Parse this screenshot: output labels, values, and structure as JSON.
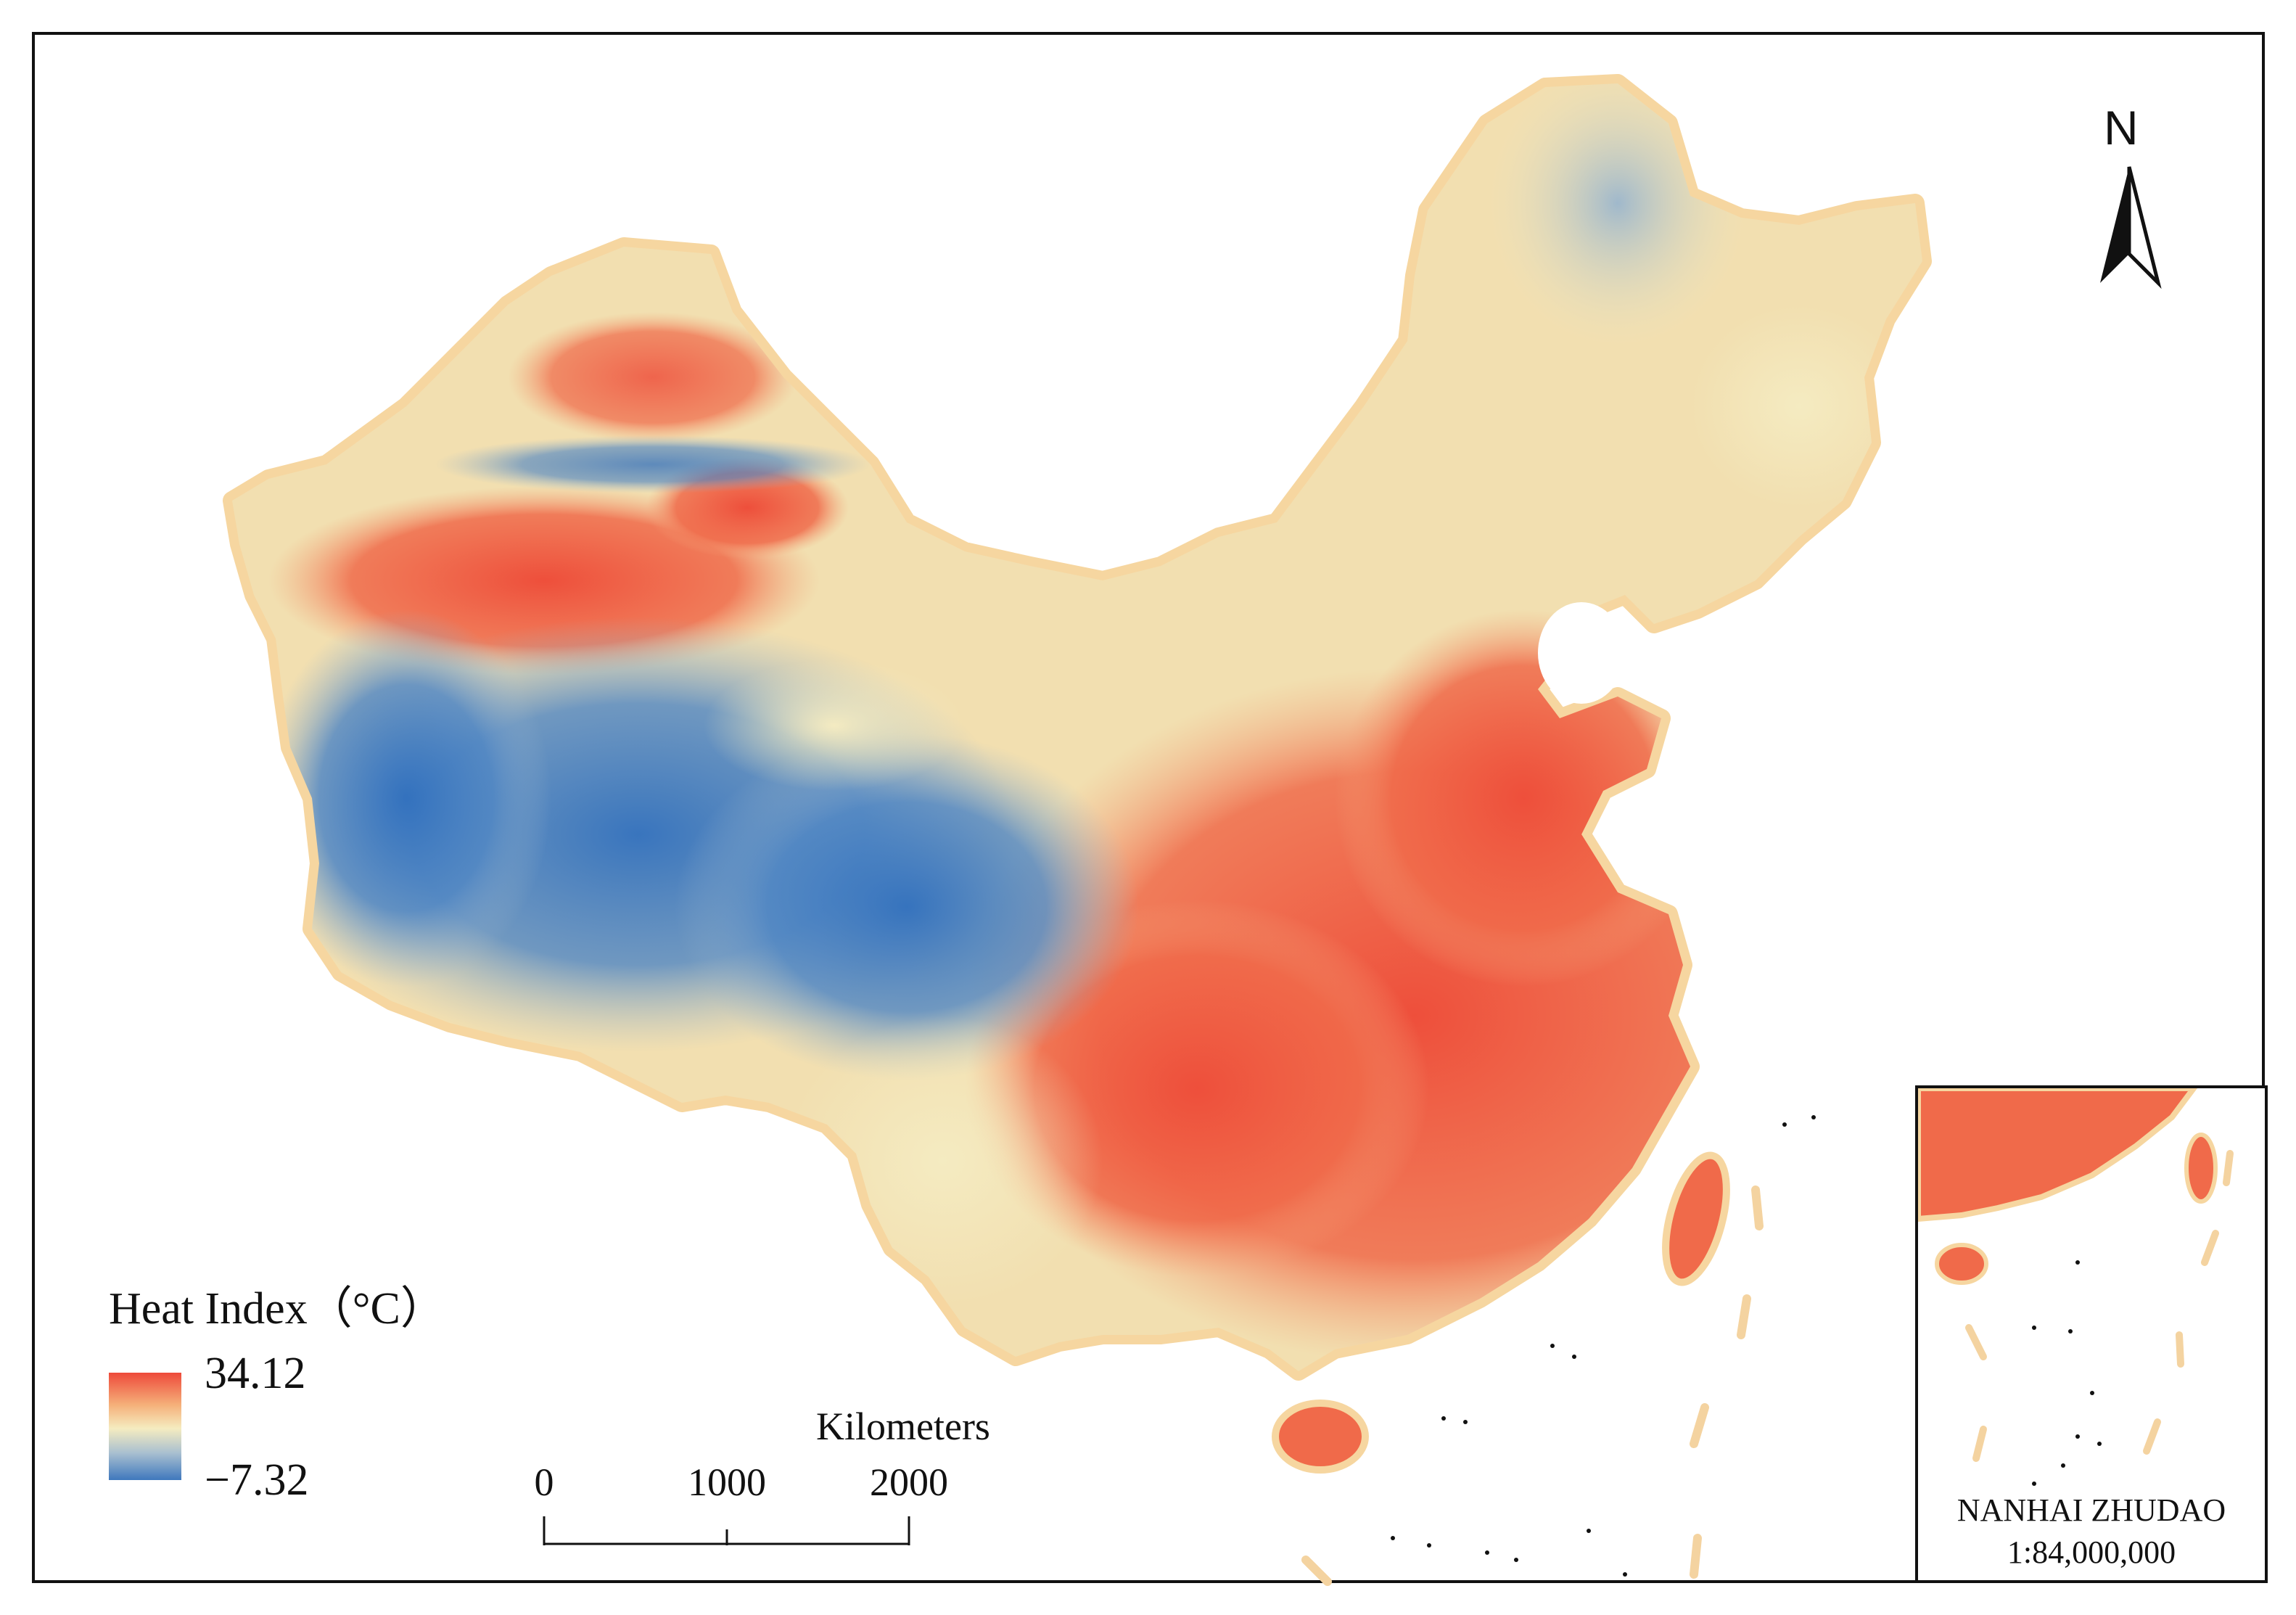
{
  "legend": {
    "title": "Heat Index（°C）",
    "max_label": "34.12",
    "min_label": "−7.32",
    "max_value": 34.12,
    "min_value": -7.32,
    "colors": {
      "high": "#ee4a3a",
      "mid": "#f5ecc0",
      "low": "#3f78bd"
    }
  },
  "scale_bar": {
    "unit_label": "Kilometers",
    "ticks": [
      "0",
      "1000",
      "2000"
    ]
  },
  "north_arrow": {
    "label": "N",
    "icon": "north-arrow-icon"
  },
  "inset": {
    "title": "NANHAI ZHUDAO",
    "scale": "1:84,000,000"
  }
}
